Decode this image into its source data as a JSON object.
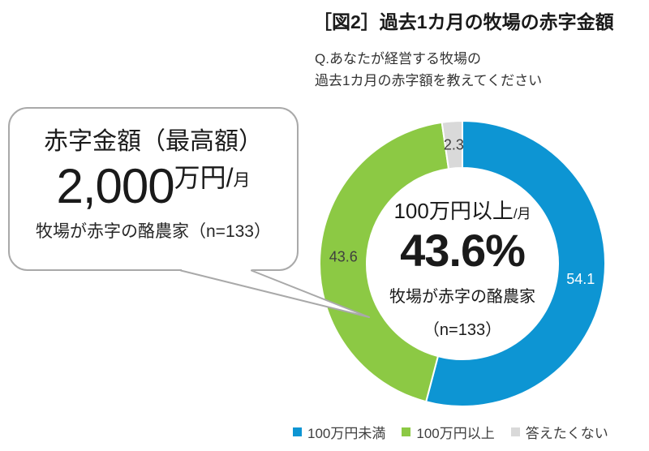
{
  "figure": {
    "title": "［図2］過去1カ月の牧場の赤字金額",
    "question_line1": "Q.あなたが経営する牧場の",
    "question_line2": "過去1カ月の赤字額を教えてください"
  },
  "callout": {
    "heading": "赤字金額（最高額）",
    "amount": "2,000",
    "unit": "万円",
    "slash": "/",
    "per": "月",
    "note": "牧場が赤字の酪農家（n=133）"
  },
  "donut_center": {
    "label": "100万円以上",
    "per": "/月",
    "value": "43.6%",
    "note1": "牧場が赤字の酪農家",
    "note2": "（n=133）"
  },
  "chart_data": {
    "type": "pie",
    "subtype": "donut",
    "title": "過去1カ月の牧場の赤字金額",
    "categories": [
      "100万円未満",
      "100万円以上",
      "答えたくない"
    ],
    "values": [
      54.1,
      43.6,
      2.3
    ],
    "unit": "%",
    "sample": "n=133",
    "data_labels": [
      "54.1",
      "43.6",
      "2.3"
    ],
    "colors": [
      "#0d95d3",
      "#8cc944",
      "#d9d9d9"
    ],
    "label_colors": [
      "#ffffff",
      "#3f3f3f",
      "#3f3f3f"
    ],
    "start_angle_deg": 0,
    "direction": "clockwise",
    "donut_hole_ratio": 0.67,
    "legend_position": "bottom",
    "separator_color": "#ffffff"
  }
}
